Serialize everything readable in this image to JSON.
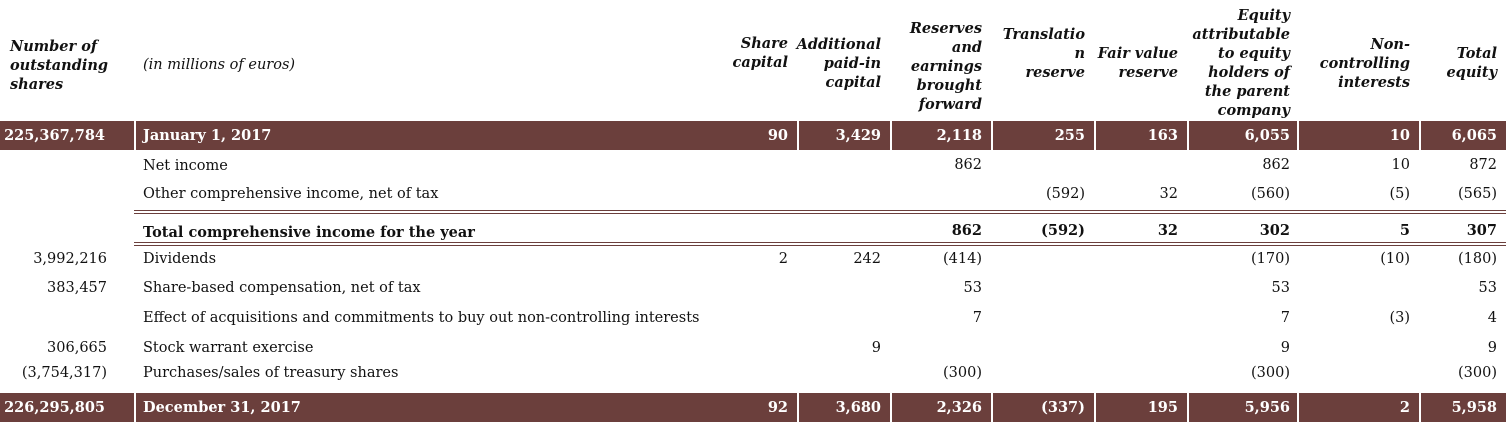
{
  "header": {
    "shares_col": "Number of\noutstanding\nshares",
    "label_col": "(in millions of euros)",
    "columns": [
      "Share\ncapital",
      "Additional\npaid-in\ncapital",
      "Reserves\nand\nearnings\nbrought\nforward",
      "Translatio\nn\nreserve",
      "Fair value\nreserve",
      "Equity\nattributable\nto equity\nholders of\nthe parent\ncompany",
      "Non-\ncontrolling\ninterests",
      "Total\nequity"
    ]
  },
  "opening": {
    "shares": "225,367,784",
    "label": "January 1, 2017",
    "values": [
      "90",
      "3,429",
      "2,118",
      "255",
      "163",
      "6,055",
      "10",
      "6,065"
    ]
  },
  "rows": [
    {
      "shares": "",
      "label": "Net income",
      "bold": false,
      "values": [
        "",
        "",
        "862",
        "",
        "",
        "862",
        "10",
        "872"
      ]
    },
    {
      "shares": "",
      "label": "Other comprehensive income, net of tax",
      "bold": false,
      "values": [
        "",
        "",
        "",
        "(592)",
        "32",
        "(560)",
        "(5)",
        "(565)"
      ]
    },
    {
      "shares": "",
      "label": "Total comprehensive income for the year",
      "bold": true,
      "values": [
        "",
        "",
        "862",
        "(592)",
        "32",
        "302",
        "5",
        "307"
      ]
    },
    {
      "shares": "3,992,216",
      "label": "Dividends",
      "bold": false,
      "values": [
        "2",
        "242",
        "(414)",
        "",
        "",
        "(170)",
        "(10)",
        "(180)"
      ]
    },
    {
      "shares": "383,457",
      "label": "Share-based compensation, net of tax",
      "bold": false,
      "values": [
        "",
        "",
        "53",
        "",
        "",
        "53",
        "",
        "53"
      ]
    },
    {
      "shares": "",
      "label": "Effect of acquisitions and commitments to buy out non-controlling interests",
      "bold": false,
      "values": [
        "",
        "",
        "7",
        "",
        "",
        "7",
        "(3)",
        "4"
      ]
    },
    {
      "shares": "306,665",
      "label": "Stock warrant exercise",
      "bold": false,
      "values": [
        "",
        "9",
        "",
        "",
        "",
        "9",
        "",
        "9"
      ]
    },
    {
      "shares": "(3,754,317)",
      "label": "Purchases/sales of treasury shares",
      "bold": false,
      "values": [
        "",
        "",
        "(300)",
        "",
        "",
        "(300)",
        "",
        "(300)"
      ]
    }
  ],
  "closing": {
    "shares": "226,295,805",
    "label": "December 31, 2017",
    "values": [
      "92",
      "3,680",
      "2,326",
      "(337)",
      "195",
      "5,956",
      "2",
      "5,958"
    ]
  }
}
